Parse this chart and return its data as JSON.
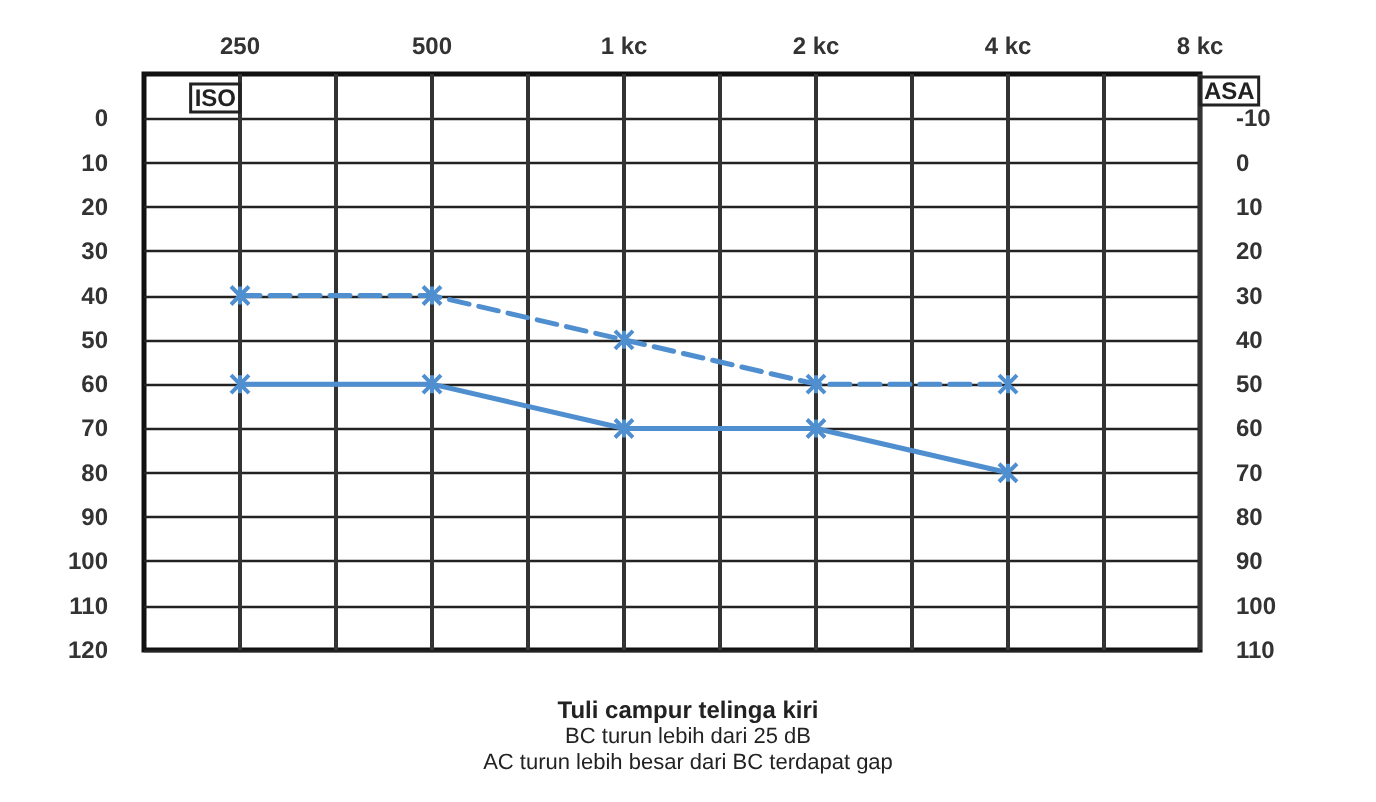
{
  "chart_data": {
    "type": "line",
    "title": "Tuli campur telinga kiri",
    "annotations": [
      "BC turun lebih dari 25 dB",
      "AC turun lebih besar dari BC terdapat gap"
    ],
    "ylabel": "ISO",
    "y2label": "ASA",
    "categories": [
      "250",
      "500",
      "1 kc",
      "2 kc",
      "4 kc",
      "8 kc"
    ],
    "series": [
      {
        "color": "#4f8fcf",
        "values": [
          40,
          40,
          50,
          60,
          60,
          null
        ],
        "line_style": "dashed"
      },
      {
        "color": "#4f8fcf",
        "values": [
          60,
          60,
          70,
          70,
          80,
          null
        ],
        "line_style": "solid"
      }
    ],
    "marker": "cross",
    "grid": true,
    "ylim": [
      120,
      -10
    ],
    "yticks": [
      0,
      10,
      20,
      30,
      40,
      50,
      60,
      70,
      80,
      90,
      100,
      110,
      120
    ],
    "y2lim": [
      110,
      -20
    ],
    "y2ticks": [
      -10,
      0,
      10,
      20,
      30,
      40,
      50,
      60,
      70,
      80,
      90,
      100,
      110
    ]
  }
}
